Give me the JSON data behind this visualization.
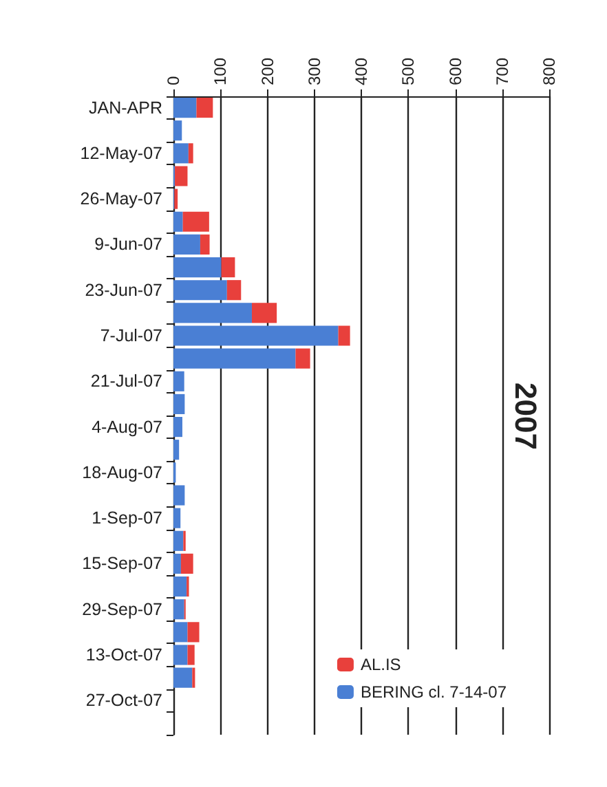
{
  "chart_data": {
    "type": "bar",
    "orientation": "horizontal",
    "stacked": true,
    "title": "2007",
    "categories": [
      "JAN-APR",
      null,
      "12-May-07",
      null,
      "26-May-07",
      null,
      "9-Jun-07",
      null,
      "23-Jun-07",
      null,
      "7-Jul-07",
      null,
      "21-Jul-07",
      null,
      "4-Aug-07",
      null,
      "18-Aug-07",
      null,
      "1-Sep-07",
      null,
      "15-Sep-07",
      null,
      "29-Sep-07",
      null,
      "13-Oct-07",
      null,
      "27-Oct-07",
      null
    ],
    "series": [
      {
        "name": "BERING cl. 7-14-07",
        "color": "#4a7fd4",
        "values": [
          49,
          18,
          32,
          3,
          2,
          20,
          57,
          102,
          114,
          167,
          351,
          260,
          23,
          24,
          19,
          12,
          5,
          24,
          15,
          21,
          16,
          28,
          23,
          30,
          30,
          40,
          null,
          null
        ]
      },
      {
        "name": "AL.IS",
        "color": "#e8403c",
        "values": [
          35,
          null,
          10,
          27,
          7,
          56,
          20,
          29,
          30,
          53,
          25,
          31,
          null,
          null,
          null,
          null,
          null,
          null,
          null,
          5,
          26,
          5,
          3,
          25,
          15,
          6,
          null,
          null
        ]
      }
    ],
    "xlim": [
      0,
      800
    ],
    "xticks": [
      0,
      100,
      200,
      300,
      400,
      500,
      600,
      700,
      800
    ],
    "grid": "x",
    "legend": "bottom right"
  }
}
